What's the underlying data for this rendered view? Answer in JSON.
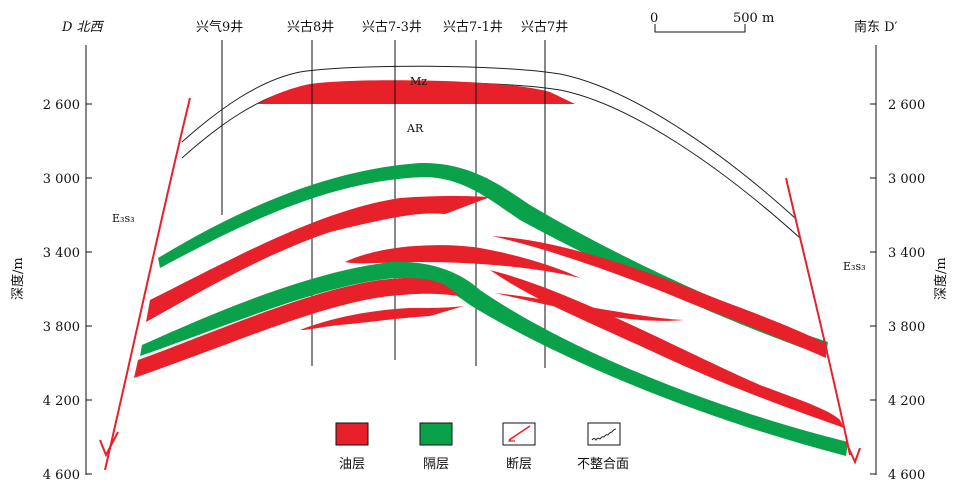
{
  "section": {
    "left_label": "D 北西",
    "right_label": "南东 D′",
    "left_axis_title": "深度/m",
    "right_axis_title": "深度/m",
    "depth_ticks": [
      "2 600",
      "3 000",
      "3 400",
      "3 800",
      "4 200",
      "4 600"
    ]
  },
  "scale_bar": {
    "start": "0",
    "end": "500 m"
  },
  "wells": [
    "兴气9井",
    "兴古8井",
    "兴古7-3井",
    "兴古7-1井",
    "兴古7井"
  ],
  "units": {
    "mz": "Mz",
    "ar": "AR",
    "formation_left": "E₃s₃",
    "formation_right": "E₃s₃"
  },
  "legend": {
    "items": [
      {
        "label": "油层",
        "color": "#e8202a"
      },
      {
        "label": "隔层",
        "color": "#0aa14b"
      },
      {
        "label": "断层",
        "color": "#e8202a"
      },
      {
        "label": "不整合面",
        "color": "#333333"
      }
    ]
  },
  "colors": {
    "oil": "#e8202a",
    "barrier": "#0aa14b",
    "fault": "#e8202a",
    "line": "#111111"
  }
}
